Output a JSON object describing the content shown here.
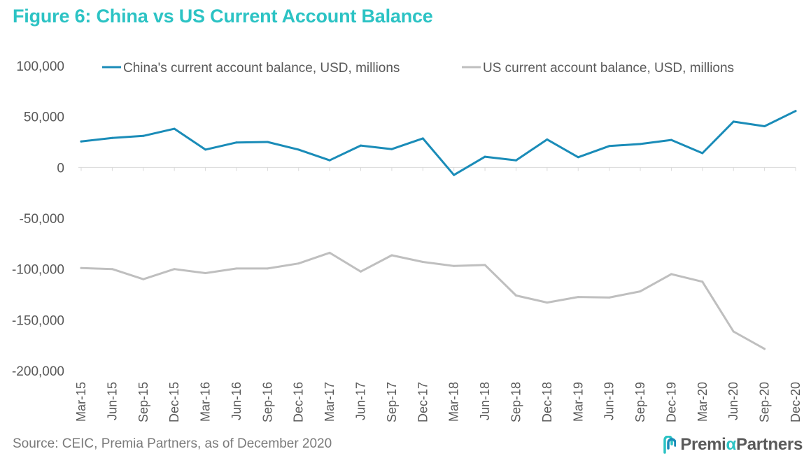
{
  "title": "Figure 6: China vs US Current Account Balance",
  "source": "Source: CEIC, Premia Partners, as of December 2020",
  "logo": {
    "part1": "Premi",
    "alpha": "α",
    "part2": "Partners"
  },
  "colors": {
    "title": "#2cc3c4",
    "china": "#1a8cb8",
    "us": "#bfbfbf",
    "text": "#595959"
  },
  "chart_data": {
    "type": "line",
    "title": "",
    "xlabel": "",
    "ylabel": "",
    "ylim": [
      -200000,
      100000
    ],
    "yticks": [
      100000,
      50000,
      0,
      -50000,
      -100000,
      -150000,
      -200000
    ],
    "ytick_labels": [
      "100,000",
      "50,000",
      "0",
      "-50,000",
      "-100,000",
      "-150,000",
      "-200,000"
    ],
    "legend_position": "top",
    "categories": [
      "Mar-15",
      "Jun-15",
      "Sep-15",
      "Dec-15",
      "Mar-16",
      "Jun-16",
      "Sep-16",
      "Dec-16",
      "Mar-17",
      "Jun-17",
      "Sep-17",
      "Dec-17",
      "Mar-18",
      "Jun-18",
      "Sep-18",
      "Dec-18",
      "Mar-19",
      "Jun-19",
      "Sep-19",
      "Dec-19",
      "Mar-20",
      "Jun-20",
      "Sep-20",
      "Dec-20"
    ],
    "series": [
      {
        "name": "China's current account balance, USD, millions",
        "color": "#1a8cb8",
        "values": [
          25500,
          29000,
          31000,
          38000,
          17500,
          24500,
          25000,
          17500,
          7000,
          21500,
          18000,
          28500,
          -7500,
          10500,
          7000,
          27500,
          10000,
          21000,
          23000,
          27000,
          14000,
          45000,
          40500,
          55500
        ]
      },
      {
        "name": "US current account balance, USD, millions",
        "color": "#bfbfbf",
        "values": [
          -99000,
          -100000,
          -110000,
          -100000,
          -104000,
          -99500,
          -99500,
          -94500,
          -84000,
          -102500,
          -86500,
          -93000,
          -97000,
          -96000,
          -126000,
          -133000,
          -127500,
          -128000,
          -122000,
          -105000,
          -112500,
          -161500,
          -178500,
          null
        ]
      }
    ]
  }
}
